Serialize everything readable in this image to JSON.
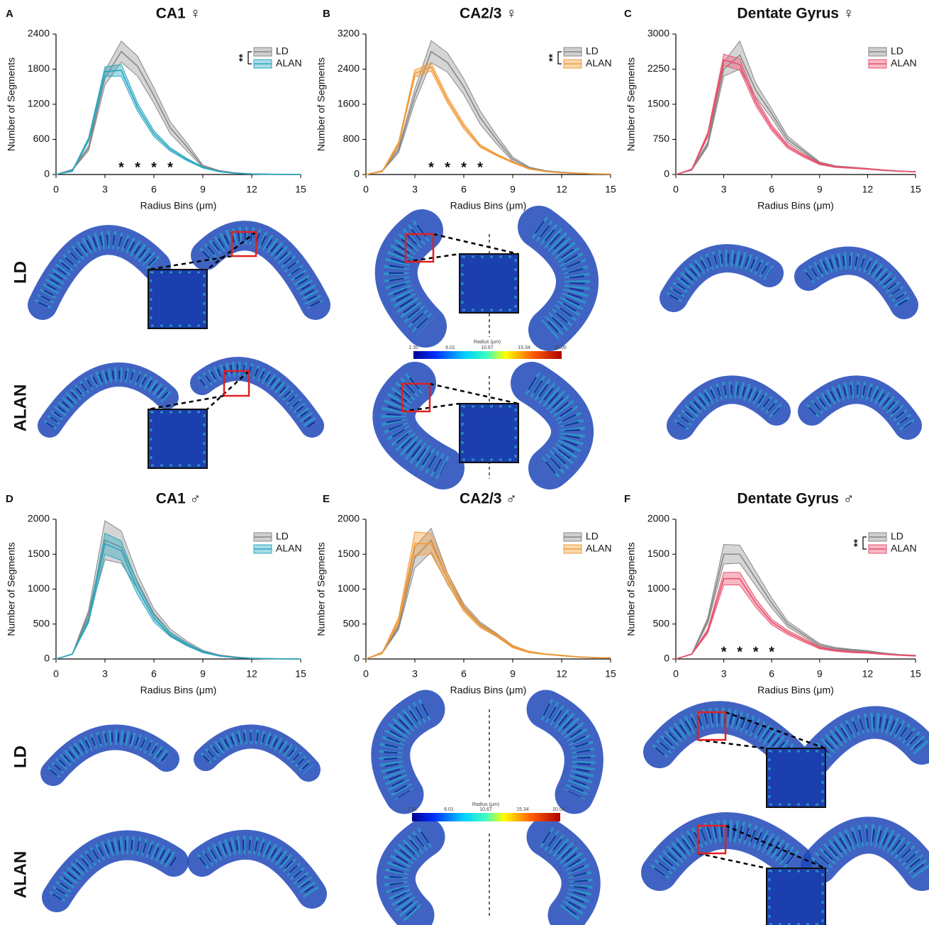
{
  "chart_data": [
    {
      "type": "line",
      "panel": "A",
      "title": "CA1 ♀",
      "x_label": "Radius Bins (μm)",
      "y_label": "Number of Segments",
      "x": [
        0,
        1,
        2,
        3,
        4,
        5,
        6,
        7,
        8,
        9,
        10,
        11,
        12,
        13,
        14,
        15
      ],
      "xlim": [
        0,
        15
      ],
      "xticks": [
        0,
        3,
        6,
        9,
        12,
        15
      ],
      "ylim": [
        0,
        2400
      ],
      "yticks": [
        0,
        600,
        1200,
        1800,
        2400
      ],
      "significance": "**",
      "annotations": [
        {
          "x": 4,
          "label": "*"
        },
        {
          "x": 5,
          "label": "*"
        },
        {
          "x": 6,
          "label": "*"
        },
        {
          "x": 7,
          "label": "*"
        }
      ],
      "series": [
        {
          "name": "LD",
          "color": "#888888",
          "values": [
            0,
            80,
            450,
            1650,
            2100,
            1850,
            1350,
            800,
            480,
            140,
            60,
            25,
            10,
            5,
            2,
            1
          ],
          "errors": [
            0,
            10,
            40,
            120,
            180,
            170,
            130,
            100,
            70,
            20,
            10,
            5,
            3,
            2,
            1,
            0
          ]
        },
        {
          "name": "ALAN",
          "color": "#2aa7c0",
          "values": [
            0,
            60,
            600,
            1760,
            1780,
            1150,
            700,
            430,
            260,
            120,
            50,
            20,
            8,
            4,
            2,
            1
          ],
          "errors": [
            0,
            10,
            30,
            80,
            100,
            70,
            50,
            30,
            20,
            10,
            5,
            3,
            2,
            1,
            1,
            0
          ]
        }
      ]
    },
    {
      "type": "line",
      "panel": "B",
      "title": "CA2/3 ♀",
      "x_label": "Radius Bins (μm)",
      "y_label": "Number of Segments",
      "x": [
        0,
        1,
        2,
        3,
        4,
        5,
        6,
        7,
        8,
        9,
        10,
        11,
        12,
        13,
        14,
        15
      ],
      "xlim": [
        0,
        15
      ],
      "xticks": [
        0,
        3,
        6,
        9,
        12,
        15
      ],
      "ylim": [
        0,
        3200
      ],
      "yticks": [
        0,
        800,
        1600,
        2400,
        3200
      ],
      "significance": "**",
      "annotations": [
        {
          "x": 4,
          "label": "*"
        },
        {
          "x": 5,
          "label": "*"
        },
        {
          "x": 6,
          "label": "*"
        },
        {
          "x": 7,
          "label": "*"
        }
      ],
      "series": [
        {
          "name": "LD",
          "color": "#888888",
          "values": [
            0,
            80,
            550,
            1800,
            2800,
            2550,
            2000,
            1300,
            800,
            350,
            150,
            80,
            50,
            30,
            15,
            10
          ],
          "errors": [
            0,
            10,
            60,
            150,
            250,
            220,
            180,
            150,
            100,
            50,
            20,
            10,
            5,
            5,
            3,
            2
          ]
        },
        {
          "name": "ALAN",
          "color": "#f29a38",
          "values": [
            0,
            70,
            700,
            2300,
            2450,
            1700,
            1100,
            650,
            450,
            280,
            130,
            70,
            40,
            25,
            15,
            10
          ],
          "errors": [
            0,
            10,
            40,
            80,
            90,
            70,
            60,
            30,
            20,
            15,
            10,
            5,
            5,
            3,
            2,
            2
          ]
        }
      ]
    },
    {
      "type": "line",
      "panel": "C",
      "title": "Dentate Gyrus ♀",
      "x_label": "Radius Bins (μm)",
      "y_label": "Number of Segments",
      "x": [
        0,
        1,
        2,
        3,
        4,
        5,
        6,
        7,
        8,
        9,
        10,
        11,
        12,
        13,
        14,
        15
      ],
      "xlim": [
        0,
        15
      ],
      "xticks": [
        0,
        3,
        6,
        9,
        12,
        15
      ],
      "ylim": [
        0,
        3000
      ],
      "yticks": [
        0,
        750,
        1500,
        2250,
        3000
      ],
      "series": [
        {
          "name": "LD",
          "color": "#888888",
          "values": [
            0,
            100,
            650,
            2250,
            2550,
            1800,
            1300,
            750,
            500,
            250,
            170,
            150,
            120,
            90,
            70,
            60
          ],
          "errors": [
            0,
            10,
            50,
            150,
            300,
            150,
            100,
            70,
            40,
            20,
            15,
            10,
            10,
            8,
            5,
            5
          ]
        },
        {
          "name": "ALAN",
          "color": "#e8516f",
          "values": [
            0,
            110,
            850,
            2450,
            2350,
            1550,
            1000,
            600,
            400,
            230,
            160,
            140,
            120,
            95,
            70,
            60
          ],
          "errors": [
            0,
            10,
            50,
            120,
            120,
            80,
            60,
            40,
            30,
            20,
            10,
            10,
            8,
            6,
            5,
            5
          ]
        }
      ]
    },
    {
      "type": "line",
      "panel": "D",
      "title": "CA1 ♂",
      "x_label": "Radius Bins (μm)",
      "y_label": "Number of Segments",
      "x": [
        0,
        1,
        2,
        3,
        4,
        5,
        6,
        7,
        8,
        9,
        10,
        11,
        12,
        13,
        14,
        15
      ],
      "xlim": [
        0,
        15
      ],
      "xticks": [
        0,
        3,
        6,
        9,
        12,
        15
      ],
      "ylim": [
        0,
        2000
      ],
      "yticks": [
        0,
        500,
        1000,
        1500,
        2000
      ],
      "series": [
        {
          "name": "LD",
          "color": "#888888",
          "values": [
            0,
            70,
            650,
            1700,
            1600,
            1100,
            650,
            380,
            230,
            110,
            50,
            25,
            10,
            5,
            2,
            1
          ],
          "errors": [
            0,
            5,
            50,
            280,
            230,
            100,
            70,
            50,
            30,
            15,
            10,
            5,
            3,
            2,
            1,
            0
          ]
        },
        {
          "name": "ALAN",
          "color": "#2aa7c0",
          "values": [
            0,
            70,
            550,
            1650,
            1550,
            1000,
            580,
            350,
            210,
            100,
            45,
            20,
            10,
            5,
            2,
            1
          ],
          "errors": [
            0,
            5,
            30,
            150,
            140,
            80,
            50,
            30,
            20,
            10,
            5,
            3,
            2,
            1,
            1,
            0
          ]
        }
      ]
    },
    {
      "type": "line",
      "panel": "E",
      "title": "CA2/3 ♂",
      "x_label": "Radius Bins (μm)",
      "y_label": "Number of Segments",
      "x": [
        0,
        1,
        2,
        3,
        4,
        5,
        6,
        7,
        8,
        9,
        10,
        11,
        12,
        13,
        14,
        15
      ],
      "xlim": [
        0,
        15
      ],
      "xticks": [
        0,
        3,
        6,
        9,
        12,
        15
      ],
      "ylim": [
        0,
        2000
      ],
      "yticks": [
        0,
        500,
        1000,
        1500,
        2000
      ],
      "series": [
        {
          "name": "LD",
          "color": "#888888",
          "values": [
            0,
            90,
            450,
            1450,
            1700,
            1150,
            750,
            500,
            350,
            180,
            100,
            70,
            50,
            30,
            20,
            15
          ],
          "errors": [
            0,
            10,
            30,
            150,
            170,
            80,
            40,
            30,
            20,
            15,
            10,
            5,
            5,
            3,
            2,
            2
          ]
        },
        {
          "name": "ALAN",
          "color": "#f29a38",
          "values": [
            0,
            85,
            550,
            1650,
            1650,
            1150,
            720,
            480,
            340,
            175,
            100,
            70,
            50,
            30,
            20,
            15
          ],
          "errors": [
            0,
            10,
            40,
            170,
            150,
            70,
            40,
            30,
            20,
            15,
            10,
            5,
            5,
            3,
            2,
            2
          ]
        }
      ]
    },
    {
      "type": "line",
      "panel": "F",
      "title": "Dentate Gyrus ♂",
      "x_label": "Radius Bins (μm)",
      "y_label": "Number of Segments",
      "x": [
        0,
        1,
        2,
        3,
        4,
        5,
        6,
        7,
        8,
        9,
        10,
        11,
        12,
        13,
        14,
        15
      ],
      "xlim": [
        0,
        15
      ],
      "xticks": [
        0,
        3,
        6,
        9,
        12,
        15
      ],
      "ylim": [
        0,
        2000
      ],
      "yticks": [
        0,
        500,
        1000,
        1500,
        2000
      ],
      "significance": "**",
      "annotations": [
        {
          "x": 3,
          "label": "*"
        },
        {
          "x": 4,
          "label": "*"
        },
        {
          "x": 5,
          "label": "*"
        },
        {
          "x": 6,
          "label": "*"
        }
      ],
      "series": [
        {
          "name": "LD",
          "color": "#888888",
          "values": [
            0,
            70,
            550,
            1500,
            1500,
            1150,
            800,
            500,
            350,
            200,
            150,
            130,
            110,
            80,
            60,
            50
          ],
          "errors": [
            0,
            5,
            40,
            140,
            130,
            100,
            70,
            40,
            30,
            20,
            15,
            10,
            10,
            8,
            5,
            5
          ]
        },
        {
          "name": "ALAN",
          "color": "#e8516f",
          "values": [
            0,
            70,
            400,
            1150,
            1150,
            800,
            530,
            380,
            270,
            160,
            120,
            100,
            90,
            70,
            55,
            45
          ],
          "errors": [
            0,
            5,
            30,
            90,
            90,
            60,
            40,
            30,
            25,
            15,
            10,
            10,
            8,
            6,
            5,
            5
          ]
        }
      ]
    }
  ],
  "row_labels": [
    "LD",
    "ALAN"
  ],
  "colorbar": {
    "title": "Radius (μm)",
    "ticks": [
      "1.35",
      "6.01",
      "10.67",
      "15.34",
      "20.00"
    ]
  }
}
